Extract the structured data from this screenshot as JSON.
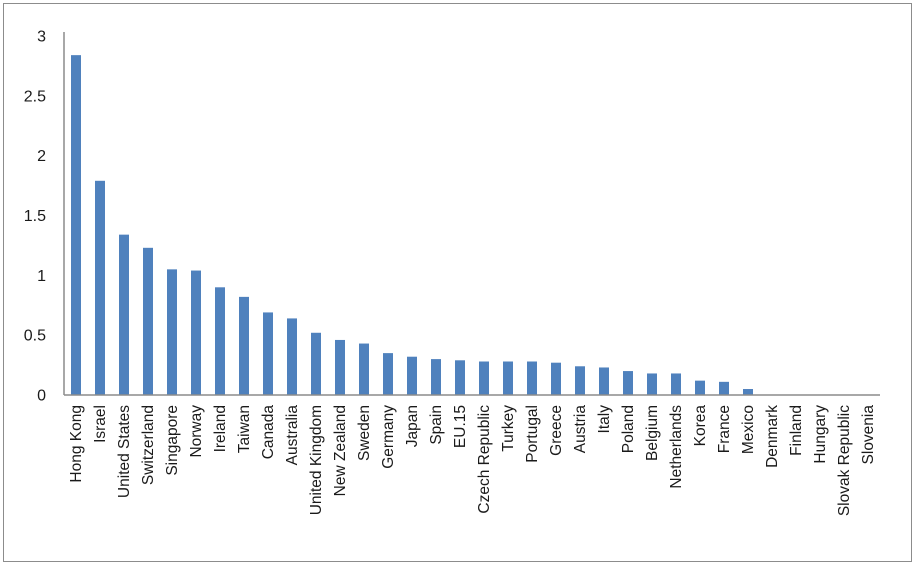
{
  "chart_data": {
    "type": "bar",
    "title": "",
    "xlabel": "",
    "ylabel": "",
    "ylim": [
      0,
      3
    ],
    "yticks": [
      "0",
      "0.5",
      "1",
      "1.5",
      "2",
      "2.5",
      "3"
    ],
    "grid": false,
    "legend": "none",
    "bar_color": "#4f81bd",
    "axis_color": "#8c8c8c",
    "categories": [
      "Hong Kong",
      "Israel",
      "United States",
      "Switzerland",
      "Singapore",
      "Norway",
      "Ireland",
      "Taiwan",
      "Canada",
      "Australia",
      "United Kingdom",
      "New Zealand",
      "Sweden",
      "Germany",
      "Japan",
      "Spain",
      "EU.15",
      "Czech Republic",
      "Turkey",
      "Portugal",
      "Greece",
      "Austria",
      "Italy",
      "Poland",
      "Belgium",
      "Netherlands",
      "Korea",
      "France",
      "Mexico",
      "Denmark",
      "Finland",
      "Hungary",
      "Slovak Republic",
      "Slovenia"
    ],
    "values": [
      2.84,
      1.79,
      1.34,
      1.23,
      1.05,
      1.04,
      0.9,
      0.82,
      0.69,
      0.64,
      0.52,
      0.46,
      0.43,
      0.35,
      0.32,
      0.3,
      0.29,
      0.28,
      0.28,
      0.28,
      0.27,
      0.24,
      0.23,
      0.2,
      0.18,
      0.18,
      0.12,
      0.11,
      0.05,
      0.0,
      0.0,
      0.0,
      0.0,
      0.0
    ]
  }
}
